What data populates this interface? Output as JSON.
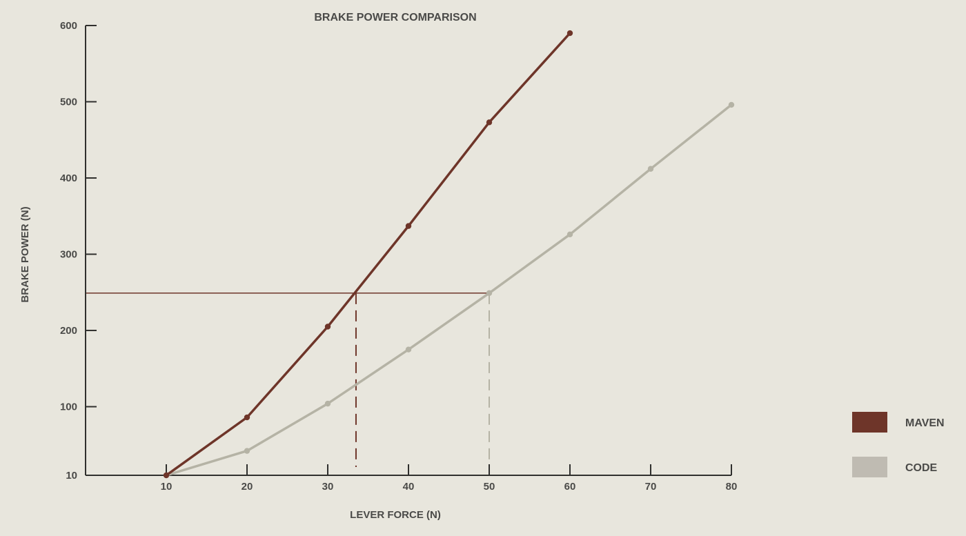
{
  "chart_data": {
    "type": "line",
    "title": "BRAKE POWER COMPARISON",
    "xlabel": "LEVER FORCE (N)",
    "ylabel": "BRAKE POWER (N)",
    "xlim": [
      0,
      80
    ],
    "ylim": [
      10,
      600
    ],
    "x_ticks": [
      "10",
      "20",
      "30",
      "40",
      "50",
      "60",
      "70",
      "80"
    ],
    "y_ticks": [
      "10",
      "100",
      "200",
      "300",
      "400",
      "500",
      "600"
    ],
    "y_tick_values": [
      10,
      100,
      200,
      300,
      400,
      500,
      600
    ],
    "grid": false,
    "legend_position": "bottom-right",
    "series": [
      {
        "name": "MAVEN",
        "color": "#6e3529",
        "x": [
          10,
          20,
          30,
          40,
          50,
          60
        ],
        "y": [
          10,
          86,
          205,
          337,
          473,
          590
        ]
      },
      {
        "name": "CODE",
        "color": "#b5b3a5",
        "x": [
          10,
          20,
          30,
          40,
          50,
          60,
          70,
          80
        ],
        "y": [
          10,
          42,
          104,
          175,
          249,
          326,
          412,
          496
        ]
      }
    ],
    "reference": {
      "y": 249,
      "maven_x": 33.5,
      "code_x": 50,
      "line_color": "#6e3529"
    },
    "legend": {
      "items": [
        {
          "label": "MAVEN",
          "color": "#6e3529"
        },
        {
          "label": "CODE",
          "color": "#bfbbb2"
        }
      ]
    }
  }
}
